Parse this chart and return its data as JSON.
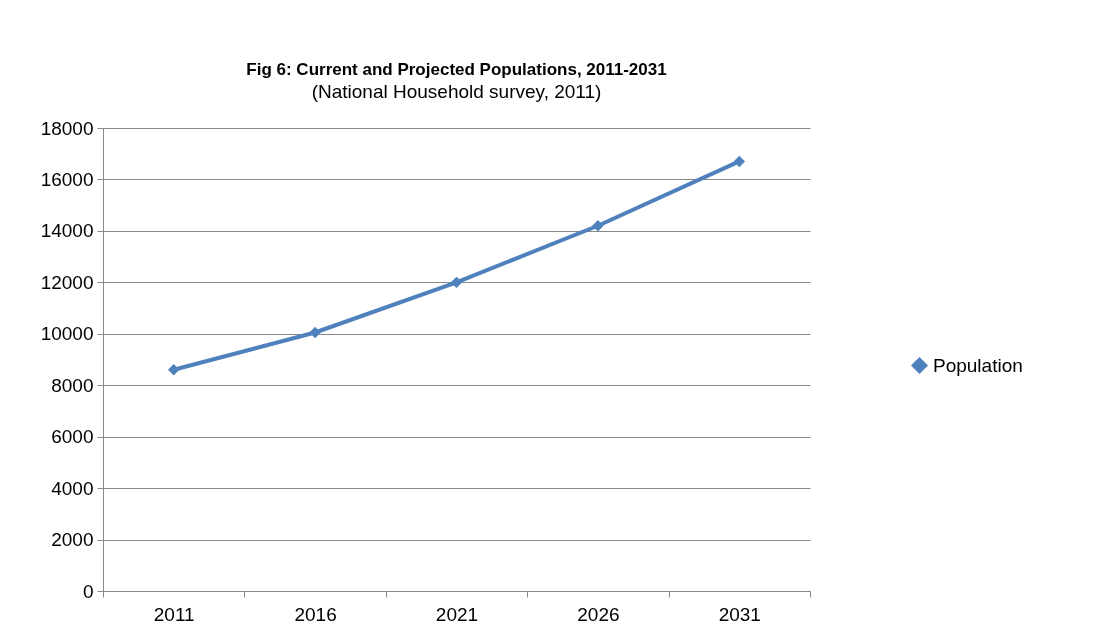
{
  "chart_data": {
    "type": "line",
    "title": "Fig 6: Current and Projected Populations, 2011-2031",
    "subtitle": "(National Household survey, 2011)",
    "categories": [
      "2011",
      "2016",
      "2021",
      "2026",
      "2031"
    ],
    "series": [
      {
        "name": "Population",
        "color": "#4f81bd",
        "values": [
          8600,
          10050,
          12000,
          14200,
          16700
        ]
      }
    ],
    "ylim": [
      0,
      18000
    ],
    "yticks": [
      0,
      2000,
      4000,
      6000,
      8000,
      10000,
      12000,
      14000,
      16000,
      18000
    ],
    "grid": "y",
    "legend": "right",
    "marker": "diamond",
    "line_style": "solid"
  }
}
